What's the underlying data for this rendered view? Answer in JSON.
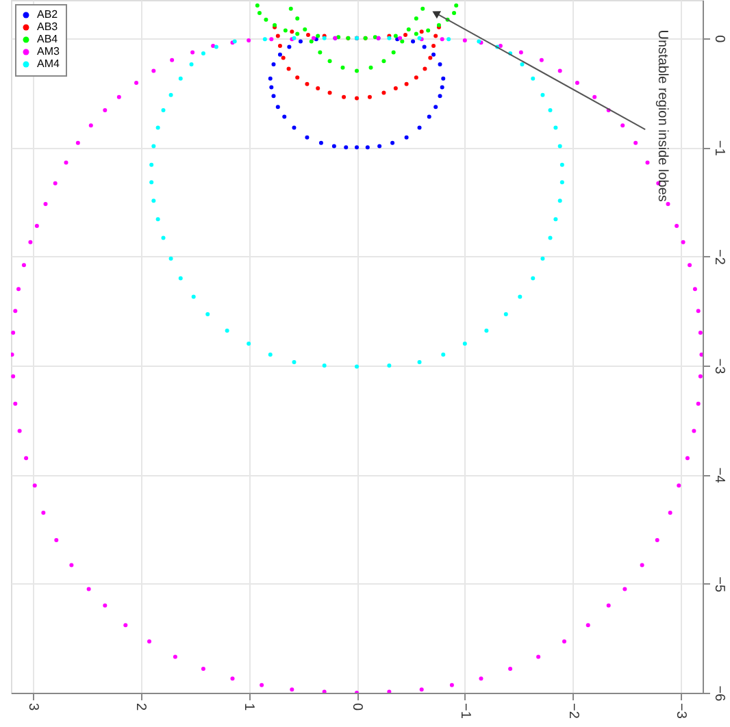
{
  "chart_data": {
    "type": "scatter",
    "xlim": [
      3.2,
      -3.2
    ],
    "ylim": [
      -6,
      0.35
    ],
    "xticks": [
      3,
      2,
      1,
      0,
      -1,
      -2,
      -3
    ],
    "yticks": [
      0,
      -1,
      -2,
      -3,
      -4,
      -5,
      -6
    ],
    "grid": true,
    "legend": "top left",
    "marker": "circle",
    "annotations": [
      {
        "text": "Unstable region inside lobes",
        "x": -0.73,
        "y": 0.23
      }
    ],
    "series": [
      {
        "name": "AB2",
        "color": "#0000ff",
        "x": [
          0,
          0.2,
          0.375,
          0.52,
          0.625,
          0.71,
          0.77,
          0.8,
          0.79,
          0.77,
          0.73,
          0.67,
          0.58,
          0.46,
          0.33,
          0.21,
          0.1,
          0,
          -0.1,
          -0.21,
          -0.33,
          -0.46,
          -0.58,
          -0.67,
          -0.73,
          -0.77,
          -0.79,
          -0.8,
          -0.77,
          -0.71,
          -0.625,
          -0.52,
          -0.375,
          -0.2
        ],
        "values": [
          0,
          0,
          -0.01,
          -0.03,
          -0.08,
          -0.15,
          -0.24,
          -0.37,
          -0.45,
          -0.53,
          -0.63,
          -0.72,
          -0.82,
          -0.91,
          -0.96,
          -0.99,
          -1.0,
          -1.0,
          -1.0,
          -0.99,
          -0.96,
          -0.91,
          -0.82,
          -0.72,
          -0.63,
          -0.53,
          -0.45,
          -0.37,
          -0.24,
          -0.15,
          -0.08,
          -0.03,
          -0.01,
          0
        ]
      },
      {
        "name": "AB3",
        "color": "#ff0000",
        "x": [
          0,
          0.12,
          0.25,
          0.36,
          0.46,
          0.55,
          0.63,
          0.68,
          0.71,
          0.73,
          0.76,
          0.6,
          0.45,
          0.3,
          0.08,
          0,
          -0.08,
          -0.3,
          -0.45,
          -0.6,
          -0.76,
          -0.73,
          -0.71,
          -0.68,
          -0.63,
          -0.55,
          -0.46,
          -0.36,
          -0.25,
          -0.12
        ],
        "values": [
          -0.55,
          -0.54,
          -0.5,
          -0.46,
          -0.42,
          -0.36,
          -0.28,
          -0.18,
          -0.07,
          0.02,
          0.1,
          0.06,
          0.03,
          0.02,
          0,
          0,
          0,
          0.02,
          0.03,
          0.06,
          0.1,
          0.02,
          -0.07,
          -0.18,
          -0.28,
          -0.36,
          -0.42,
          -0.46,
          -0.5,
          -0.54
        ]
      },
      {
        "name": "AB4",
        "color": "#00ff00",
        "x": [
          0,
          0.08,
          0.17,
          0.36,
          0.55,
          0.66,
          0.76,
          0.84,
          0.9,
          0.92,
          0.61,
          0.55,
          0.48,
          0.42,
          0.34,
          0.25,
          0.13,
          0,
          -0.13,
          -0.25,
          -0.34,
          -0.42,
          -0.48,
          -0.55,
          -0.61,
          -0.92,
          -0.9,
          -0.84,
          -0.76,
          -0.66,
          -0.55,
          -0.36,
          -0.17,
          -0.08
        ],
        "values": [
          0,
          0,
          0.01,
          0.02,
          0.04,
          0.07,
          0.12,
          0.17,
          0.23,
          0.3,
          0.27,
          0.18,
          0.08,
          -0.03,
          -0.13,
          -0.21,
          -0.27,
          -0.3,
          -0.27,
          -0.21,
          -0.13,
          -0.03,
          0.08,
          0.18,
          0.27,
          0.3,
          0.23,
          0.17,
          0.12,
          0.07,
          0.04,
          0.02,
          0.01,
          0
        ]
      },
      {
        "name": "AM3",
        "color": "#ff00ff",
        "x": [
          0,
          0.2,
          0.4,
          0.6,
          0.79,
          1.0,
          1.15,
          1.33,
          1.52,
          1.71,
          1.88,
          2.04,
          2.2,
          2.33,
          2.46,
          2.58,
          2.69,
          2.79,
          2.88,
          2.96,
          3.02,
          3.08,
          3.13,
          3.16,
          3.18,
          3.19,
          3.18,
          3.16,
          3.12,
          3.06,
          2.98,
          2.9,
          2.78,
          2.64,
          2.48,
          2.33,
          2.14,
          1.92,
          1.68,
          1.42,
          1.15,
          0.88,
          0.6,
          0.3,
          0,
          -0.3,
          -0.6,
          -0.88,
          -1.15,
          -1.42,
          -1.68,
          -1.92,
          -2.14,
          -2.33,
          -2.48,
          -2.64,
          -2.78,
          -2.9,
          -2.98,
          -3.06,
          -3.12,
          -3.16,
          -3.18,
          -3.19,
          -3.18,
          -3.16,
          -3.13,
          -3.08,
          -3.02,
          -2.96,
          -2.88,
          -2.79,
          -2.69,
          -2.58,
          -2.46,
          -2.33,
          -2.2,
          -2.04,
          -1.88,
          -1.71,
          -1.52,
          -1.33,
          -1.15,
          -1.0,
          -0.79,
          -0.6,
          -0.4,
          -0.2
        ],
        "values": [
          0,
          0,
          0,
          -0.01,
          -0.01,
          -0.02,
          -0.04,
          -0.07,
          -0.13,
          -0.2,
          -0.3,
          -0.41,
          -0.54,
          -0.66,
          -0.8,
          -0.96,
          -1.14,
          -1.33,
          -1.52,
          -1.72,
          -1.87,
          -2.08,
          -2.3,
          -2.5,
          -2.7,
          -2.9,
          -3.1,
          -3.35,
          -3.6,
          -3.85,
          -4.1,
          -4.35,
          -4.6,
          -4.83,
          -5.05,
          -5.2,
          -5.38,
          -5.53,
          -5.67,
          -5.78,
          -5.87,
          -5.93,
          -5.97,
          -5.99,
          -6,
          -5.99,
          -5.97,
          -5.93,
          -5.87,
          -5.78,
          -5.67,
          -5.53,
          -5.38,
          -5.2,
          -5.05,
          -4.83,
          -4.6,
          -4.35,
          -4.1,
          -3.85,
          -3.6,
          -3.35,
          -3.1,
          -2.9,
          -2.7,
          -2.5,
          -2.3,
          -2.08,
          -1.87,
          -1.72,
          -1.52,
          -1.33,
          -1.14,
          -0.96,
          -0.8,
          -0.66,
          -0.54,
          -0.41,
          -0.3,
          -0.2,
          -0.13,
          -0.07,
          -0.04,
          -0.02,
          -0.01,
          -0.01,
          0,
          0
        ]
      },
      {
        "name": "AM4",
        "color": "#00ffff",
        "x": [
          0,
          0.3,
          0.58,
          0.85,
          1.13,
          1.3,
          1.42,
          1.53,
          1.63,
          1.72,
          1.79,
          1.84,
          1.88,
          1.9,
          1.9,
          1.88,
          1.84,
          1.79,
          1.72,
          1.63,
          1.51,
          1.38,
          1.2,
          1.0,
          0.8,
          0.58,
          0.3,
          0,
          -0.3,
          -0.58,
          -0.8,
          -1.0,
          -1.2,
          -1.38,
          -1.51,
          -1.63,
          -1.72,
          -1.79,
          -1.84,
          -1.88,
          -1.9,
          -1.9,
          -1.88,
          -1.84,
          -1.79,
          -1.72,
          -1.63,
          -1.53,
          -1.42,
          -1.3,
          -1.13,
          -0.85,
          -0.58,
          -0.3
        ],
        "values": [
          0,
          0,
          0,
          -0.01,
          -0.03,
          -0.08,
          -0.14,
          -0.24,
          -0.37,
          -0.52,
          -0.66,
          -0.82,
          -0.99,
          -1.16,
          -1.32,
          -1.49,
          -1.66,
          -1.83,
          -2.02,
          -2.2,
          -2.37,
          -2.53,
          -2.68,
          -2.8,
          -2.9,
          -2.97,
          -3.0,
          -3.01,
          -3.0,
          -2.97,
          -2.9,
          -2.8,
          -2.68,
          -2.53,
          -2.37,
          -2.2,
          -2.02,
          -1.83,
          -1.66,
          -1.49,
          -1.32,
          -1.16,
          -0.99,
          -0.82,
          -0.66,
          -0.52,
          -0.37,
          -0.24,
          -0.14,
          -0.08,
          -0.03,
          -0.01,
          0,
          0
        ]
      }
    ]
  }
}
